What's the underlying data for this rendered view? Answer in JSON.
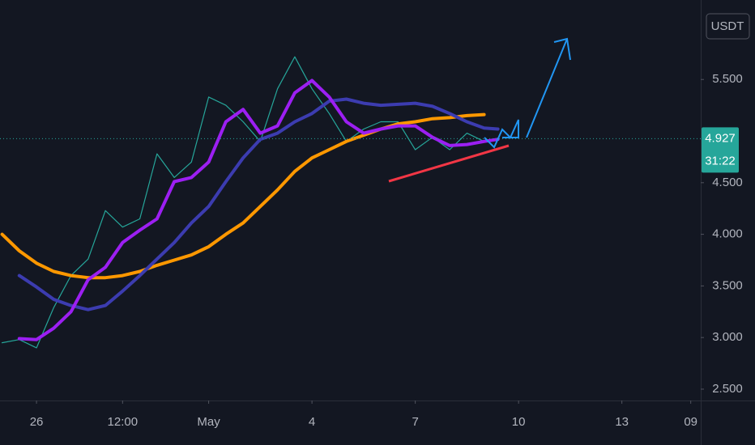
{
  "chart_data": {
    "type": "line",
    "currency": "USDT",
    "x": [
      -1,
      -0.5,
      0,
      0.5,
      1,
      1.5,
      2,
      2.5,
      3,
      3.5,
      4,
      4.5,
      5,
      5.5,
      6,
      6.5,
      7,
      7.5,
      8,
      8.5,
      9,
      9.5,
      10,
      10.5,
      11,
      11.5,
      12,
      12.5,
      13,
      13.4
    ],
    "xlim": [
      -1.06,
      19.29
    ],
    "xticks": [
      {
        "value": 0,
        "label": "26"
      },
      {
        "value": 2.5,
        "label": "12:00"
      },
      {
        "value": 5,
        "label": "May"
      },
      {
        "value": 8,
        "label": "4"
      },
      {
        "value": 11,
        "label": "7"
      },
      {
        "value": 14,
        "label": "10"
      },
      {
        "value": 17,
        "label": "13"
      },
      {
        "value": 19,
        "label": "09"
      }
    ],
    "ylim": [
      2.39,
      6.27
    ],
    "yticks": [
      {
        "value": 2.5,
        "label": "2.500"
      },
      {
        "value": 3,
        "label": "3.000"
      },
      {
        "value": 3.5,
        "label": "3.500"
      },
      {
        "value": 4,
        "label": "4.000"
      },
      {
        "value": 4.5,
        "label": "4.500"
      },
      {
        "value": 5.5,
        "label": "5.500"
      }
    ],
    "grid": false,
    "series": [
      {
        "color": "#26a69a",
        "width": 1.2,
        "values": [
          2.95,
          2.98,
          2.9,
          3.29,
          3.6,
          3.76,
          4.23,
          4.07,
          4.15,
          4.78,
          4.55,
          4.7,
          5.33,
          5.25,
          5.09,
          4.9,
          5.41,
          5.72,
          5.41,
          5.17,
          4.9,
          5.02,
          5.09,
          5.09,
          4.82,
          4.94,
          4.82,
          4.98,
          4.9,
          4.927
        ]
      },
      {
        "color": "#ff9800",
        "width": 4,
        "values": [
          4.0,
          3.84,
          3.72,
          3.64,
          3.6,
          3.58,
          3.58,
          3.6,
          3.64,
          3.7,
          3.75,
          3.8,
          3.88,
          4.0,
          4.11,
          4.27,
          4.43,
          4.61,
          4.74,
          4.82,
          4.9,
          4.96,
          5.02,
          5.07,
          5.09,
          5.12,
          5.13,
          5.15,
          5.16,
          null
        ]
      },
      {
        "color": "#3c3cb0",
        "width": 4,
        "values": [
          null,
          3.6,
          3.49,
          3.37,
          3.31,
          3.27,
          3.31,
          3.45,
          3.6,
          3.76,
          3.92,
          4.11,
          4.27,
          4.51,
          4.74,
          4.92,
          4.98,
          5.09,
          5.17,
          5.29,
          5.31,
          5.27,
          5.25,
          5.26,
          5.27,
          5.24,
          5.17,
          5.09,
          5.03,
          5.02
        ]
      },
      {
        "color": "#9c1ff2",
        "width": 4,
        "values": [
          null,
          2.99,
          2.98,
          3.09,
          3.25,
          3.56,
          3.68,
          3.92,
          4.04,
          4.15,
          4.51,
          4.55,
          4.7,
          5.09,
          5.21,
          4.98,
          5.05,
          5.37,
          5.49,
          5.33,
          5.09,
          4.98,
          5.02,
          5.05,
          5.05,
          4.94,
          4.86,
          4.87,
          4.9,
          4.92
        ]
      }
    ],
    "last_price": 4.927,
    "countdown": "31:22"
  }
}
